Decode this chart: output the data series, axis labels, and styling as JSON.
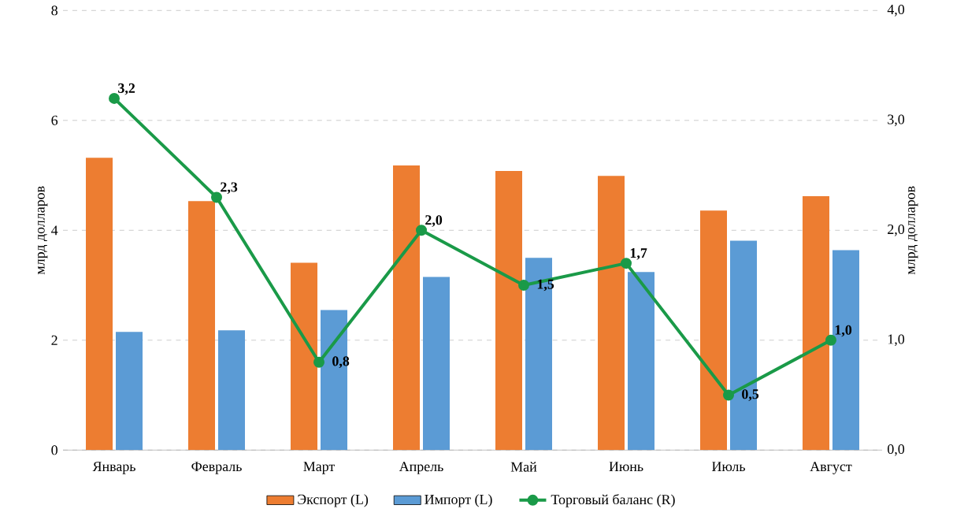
{
  "chart_data": {
    "type": "bar",
    "ylabel": "млрд долларов",
    "y2label": "млрд долларов",
    "categories": [
      "Январь",
      "Февраль",
      "Март",
      "Апрель",
      "Май",
      "Июнь",
      "Июль",
      "Август"
    ],
    "series": [
      {
        "name": "Экспорт (L)",
        "color": "#ed7d31",
        "values": [
          5.32,
          4.53,
          3.41,
          5.18,
          5.08,
          4.99,
          4.36,
          4.62
        ]
      },
      {
        "name": "Импорт (L)",
        "color": "#5b9bd5",
        "values": [
          2.15,
          2.18,
          2.55,
          3.15,
          3.5,
          3.24,
          3.81,
          3.64
        ]
      },
      {
        "name": "Торговый баланс (R)",
        "type": "line",
        "axis": "y2",
        "color": "#1a9a48",
        "values": [
          3.2,
          2.3,
          0.8,
          2.0,
          1.5,
          1.7,
          0.5,
          1.0
        ],
        "value_labels": [
          "3,2",
          "2,3",
          "0,8",
          "2,0",
          "1,5",
          "1,7",
          "0,5",
          "1,0"
        ]
      }
    ],
    "ylim": [
      0,
      8
    ],
    "yticks": [
      0,
      2,
      4,
      6,
      8
    ],
    "y2lim": [
      0,
      4
    ],
    "y2ticks": [
      {
        "value": 0,
        "label": "0,0"
      },
      {
        "value": 1,
        "label": "1,0"
      },
      {
        "value": 2,
        "label": "2,0"
      },
      {
        "value": 3,
        "label": "3,0"
      },
      {
        "value": 4,
        "label": "4,0"
      }
    ],
    "grid": "y",
    "legend": "bottom",
    "marker": "circle",
    "line_style": "solid"
  }
}
